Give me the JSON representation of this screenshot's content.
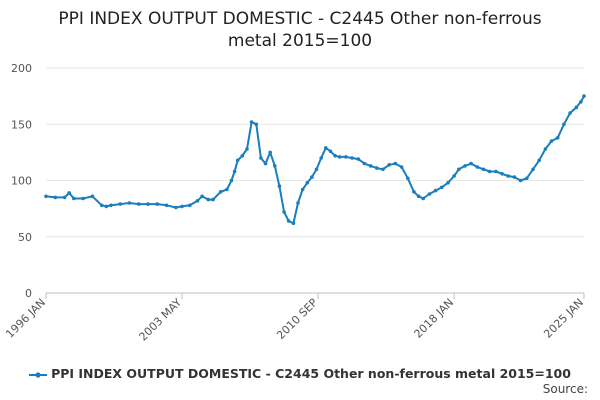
{
  "chart_data": {
    "type": "line",
    "title_line1": "PPI INDEX OUTPUT DOMESTIC - C2445 Other non-ferrous",
    "title_line2": "metal 2015=100",
    "xlabel": "",
    "ylabel": "",
    "ylim": [
      0,
      200
    ],
    "yticks": [
      "0",
      "50",
      "100",
      "150",
      "200"
    ],
    "xticks": [
      "1996 JAN",
      "2003 MAY",
      "2010 SEP",
      "2018 JAN",
      "2025 JAN"
    ],
    "grid": true,
    "legend_position": "bottom",
    "color": "#1a7ebd",
    "series": [
      {
        "name": "PPI INDEX OUTPUT DOMESTIC - C2445 Other non-ferrous metal 2015=100",
        "x": [
          "1996-01",
          "1996-07",
          "1997-01",
          "1997-04",
          "1997-07",
          "1998-01",
          "1998-07",
          "1999-01",
          "1999-04",
          "1999-07",
          "2000-01",
          "2000-07",
          "2001-01",
          "2001-07",
          "2002-01",
          "2002-07",
          "2003-01",
          "2003-05",
          "2003-10",
          "2004-03",
          "2004-06",
          "2004-10",
          "2005-01",
          "2005-06",
          "2005-10",
          "2006-01",
          "2006-03",
          "2006-05",
          "2006-08",
          "2006-11",
          "2007-02",
          "2007-05",
          "2007-08",
          "2007-11",
          "2008-02",
          "2008-05",
          "2008-08",
          "2008-11",
          "2009-02",
          "2009-05",
          "2009-08",
          "2009-11",
          "2010-02",
          "2010-05",
          "2010-08",
          "2010-11",
          "2011-02",
          "2011-05",
          "2011-08",
          "2011-11",
          "2012-03",
          "2012-07",
          "2012-11",
          "2013-03",
          "2013-07",
          "2013-11",
          "2014-03",
          "2014-07",
          "2014-11",
          "2015-03",
          "2015-07",
          "2015-11",
          "2016-02",
          "2016-05",
          "2016-09",
          "2017-01",
          "2017-05",
          "2017-09",
          "2018-01",
          "2018-04",
          "2018-08",
          "2018-12",
          "2019-04",
          "2019-08",
          "2019-12",
          "2020-04",
          "2020-08",
          "2020-12",
          "2021-04",
          "2021-08",
          "2021-12",
          "2022-04",
          "2022-08",
          "2022-12",
          "2023-04",
          "2023-08",
          "2023-12",
          "2024-04",
          "2024-08",
          "2024-11",
          "2025-01"
        ],
        "values": [
          86,
          85,
          85,
          89,
          84,
          84,
          86,
          78,
          77,
          78,
          79,
          80,
          79,
          79,
          79,
          78,
          76,
          77,
          78,
          82,
          86,
          83,
          83,
          90,
          92,
          100,
          108,
          118,
          122,
          128,
          152,
          150,
          120,
          115,
          125,
          113,
          95,
          72,
          64,
          62,
          80,
          92,
          98,
          103,
          110,
          120,
          129,
          126,
          122,
          121,
          121,
          120,
          119,
          115,
          113,
          111,
          110,
          114,
          115,
          112,
          102,
          90,
          86,
          84,
          88,
          91,
          94,
          98,
          104,
          110,
          113,
          115,
          112,
          110,
          108,
          108,
          106,
          104,
          103,
          100,
          102,
          110,
          118,
          128,
          135,
          138,
          150,
          160,
          165,
          170,
          175
        ]
      }
    ],
    "source_label": "Source:"
  }
}
